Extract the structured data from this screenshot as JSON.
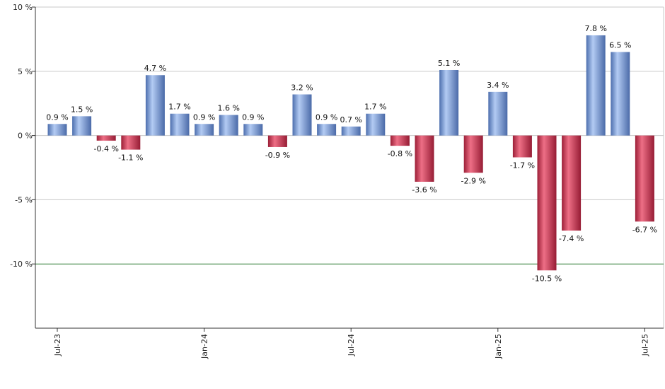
{
  "chart_data": {
    "type": "bar",
    "title": "",
    "xlabel": "",
    "ylabel": "",
    "ylim": [
      -15,
      10
    ],
    "y_ticks": [
      {
        "value": 10,
        "label": "10 %"
      },
      {
        "value": 5,
        "label": "5 %"
      },
      {
        "value": 0,
        "label": "0 %"
      },
      {
        "value": -5,
        "label": "-5 %"
      },
      {
        "value": -10,
        "label": "-10 %"
      }
    ],
    "reference_line": {
      "value": -10,
      "color": "#2e7d32"
    },
    "x_ticks": [
      {
        "index": 0,
        "label": "Jul-23"
      },
      {
        "index": 6,
        "label": "Jan-24"
      },
      {
        "index": 12,
        "label": "Jul-24"
      },
      {
        "index": 18,
        "label": "Jan-25"
      },
      {
        "index": 24,
        "label": "Jul-25"
      }
    ],
    "values": [
      0.9,
      1.5,
      -0.4,
      -1.1,
      4.7,
      1.7,
      0.9,
      1.6,
      0.9,
      -0.9,
      3.2,
      0.9,
      0.7,
      1.7,
      -0.8,
      -3.6,
      5.1,
      -2.9,
      3.4,
      -1.7,
      -10.5,
      -7.4,
      7.8,
      6.5,
      -6.7
    ],
    "data_labels": [
      "0.9 %",
      "1.5 %",
      "-0.4 %",
      "-1.1 %",
      "4.7 %",
      "1.7 %",
      "0.9 %",
      "1.6 %",
      "0.9 %",
      "-0.9 %",
      "3.2 %",
      "0.9 %",
      "0.7 %",
      "1.7 %",
      "-0.8 %",
      "-3.6 %",
      "5.1 %",
      "-2.9 %",
      "3.4 %",
      "-1.7 %",
      "-10.5 %",
      "-7.4 %",
      "7.8 %",
      "6.5 %",
      "-6.7 %"
    ],
    "colors": {
      "positive": "#6f95d6",
      "negative": "#c8334d",
      "grid": "#c8c8c8",
      "axis": "#333333"
    },
    "grid": true,
    "legend": "none"
  }
}
